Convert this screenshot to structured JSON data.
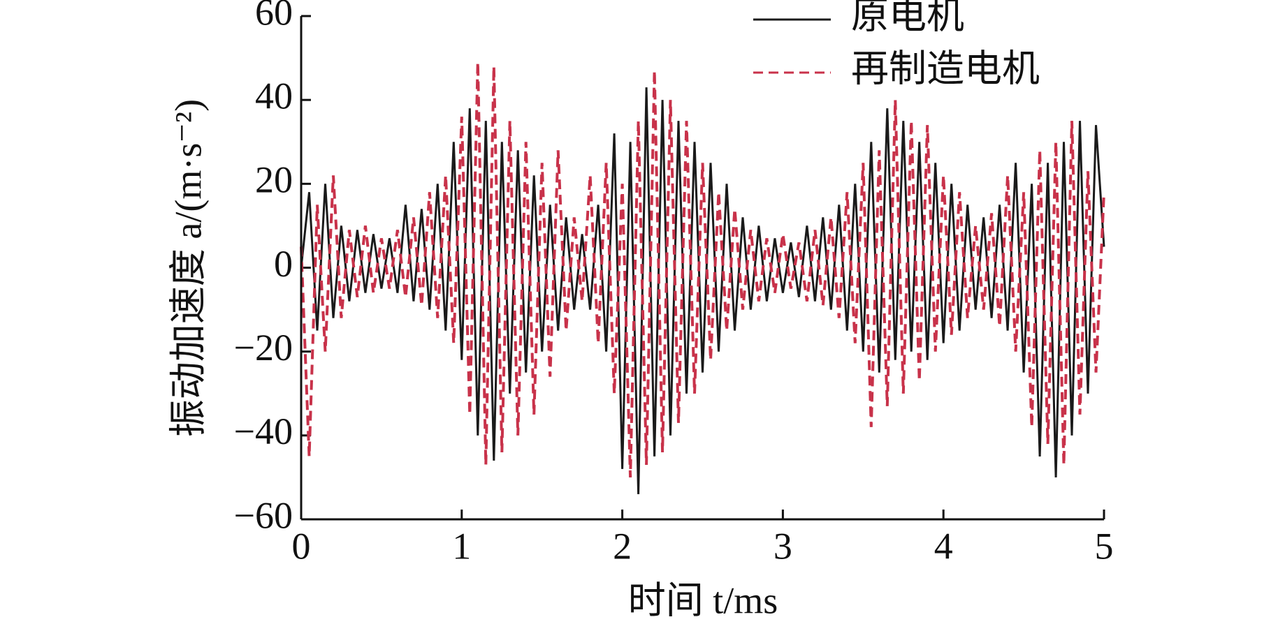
{
  "chart_data": {
    "type": "line",
    "xlabel": "时间 t/ms",
    "ylabel": "振动加速度 a/(m·s⁻²)",
    "x": [
      0,
      0.05,
      0.1,
      0.15,
      0.2,
      0.25,
      0.3,
      0.35,
      0.4,
      0.45,
      0.5,
      0.55,
      0.6,
      0.65,
      0.7,
      0.75,
      0.8,
      0.85,
      0.9,
      0.95,
      1,
      1.05,
      1.1,
      1.15,
      1.2,
      1.25,
      1.3,
      1.35,
      1.4,
      1.45,
      1.5,
      1.55,
      1.6,
      1.65,
      1.7,
      1.75,
      1.8,
      1.85,
      1.9,
      1.95,
      2,
      2.05,
      2.1,
      2.15,
      2.2,
      2.25,
      2.3,
      2.35,
      2.4,
      2.45,
      2.5,
      2.55,
      2.6,
      2.65,
      2.7,
      2.75,
      2.8,
      2.85,
      2.9,
      2.95,
      3,
      3.05,
      3.1,
      3.15,
      3.2,
      3.25,
      3.3,
      3.35,
      3.4,
      3.45,
      3.5,
      3.55,
      3.6,
      3.65,
      3.7,
      3.75,
      3.8,
      3.85,
      3.9,
      3.95,
      4,
      4.05,
      4.1,
      4.15,
      4.2,
      4.25,
      4.3,
      4.35,
      4.4,
      4.45,
      4.5,
      4.55,
      4.6,
      4.65,
      4.7,
      4.75,
      4.8,
      4.85,
      4.9,
      4.95,
      5
    ],
    "series": [
      {
        "name": "原电机",
        "color": "#1a1a1a",
        "dash": false,
        "values": [
          0,
          18,
          -15,
          20,
          -12,
          10,
          -8,
          9,
          -6,
          8,
          -5,
          7,
          -6,
          15,
          -8,
          14,
          -10,
          20,
          -15,
          30,
          -22,
          38,
          -40,
          35,
          -46,
          30,
          -30,
          28,
          -25,
          22,
          -20,
          15,
          -15,
          12,
          -10,
          8,
          -10,
          15,
          -20,
          32,
          -48,
          30,
          -54,
          43,
          -45,
          40,
          -40,
          35,
          -30,
          30,
          -25,
          25,
          -20,
          20,
          -15,
          12,
          -10,
          10,
          -8,
          7,
          -6,
          6,
          -7,
          10,
          -8,
          12,
          -10,
          15,
          -15,
          20,
          -20,
          30,
          -25,
          38,
          -22,
          35,
          -20,
          30,
          -22,
          25,
          -18,
          20,
          -15,
          15,
          -10,
          12,
          -12,
          15,
          -15,
          25,
          -25,
          20,
          -45,
          25,
          -50,
          30,
          -40,
          35,
          -30,
          34,
          5
        ]
      },
      {
        "name": "再制造电机",
        "color": "#c8324a",
        "dash": true,
        "values": [
          5,
          -45,
          15,
          -20,
          22,
          -12,
          9,
          -7,
          10,
          -6,
          7,
          -5,
          9,
          -7,
          12,
          -9,
          18,
          -12,
          22,
          -18,
          36,
          -35,
          49,
          -47,
          48,
          -44,
          35,
          -40,
          30,
          -35,
          25,
          -26,
          28,
          -15,
          12,
          -8,
          22,
          -18,
          25,
          -30,
          20,
          -50,
          35,
          -47,
          47,
          -44,
          40,
          -37,
          35,
          -30,
          25,
          -22,
          18,
          -15,
          14,
          -10,
          9,
          -8,
          7,
          -6,
          8,
          -5,
          6,
          -8,
          9,
          -9,
          12,
          -12,
          18,
          -18,
          25,
          -38,
          28,
          -33,
          40,
          -30,
          35,
          -27,
          34,
          -20,
          22,
          -16,
          18,
          -12,
          10,
          -10,
          13,
          -14,
          22,
          -20,
          18,
          -38,
          28,
          -42,
          30,
          -47,
          35,
          -35,
          23,
          -25,
          18
        ]
      }
    ],
    "xlim": [
      0,
      5
    ],
    "xticks": [
      0,
      1,
      2,
      3,
      4,
      5
    ],
    "ylim": [
      -60,
      60
    ],
    "yticks": [
      {
        "value": -60,
        "label": "−60"
      },
      {
        "value": -40,
        "label": "−40"
      },
      {
        "value": -20,
        "label": "−20"
      },
      0,
      20,
      40,
      60
    ],
    "legend": "upper right",
    "grid": false
  }
}
